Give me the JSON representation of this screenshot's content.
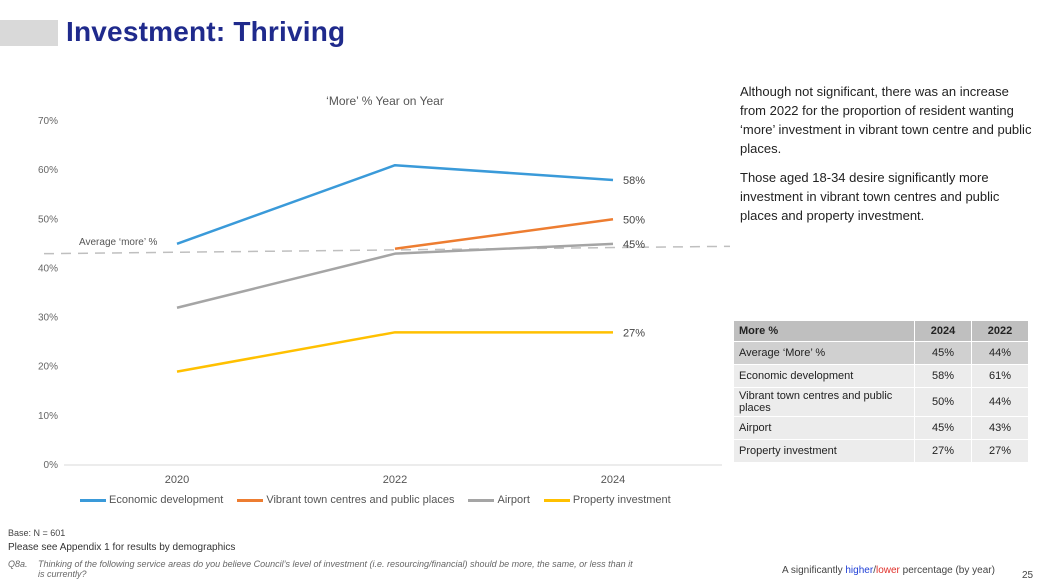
{
  "page": {
    "title": "Investment: Thriving",
    "page_number": "25"
  },
  "commentary": {
    "para1": "Although not significant, there was an increase from 2022 for the proportion of resident wanting ‘more’ investment in vibrant town centre and public places.",
    "para2": "Those aged 18-34 desire significantly more investment in vibrant town centres and public places and property investment."
  },
  "chart_data": {
    "type": "line",
    "title": "‘More’ % Year on Year",
    "categories": [
      "2020",
      "2022",
      "2024"
    ],
    "ylim": [
      0,
      70
    ],
    "y_ticks": [
      "0%",
      "10%",
      "20%",
      "30%",
      "40%",
      "50%",
      "60%",
      "70%"
    ],
    "y_tick_values": [
      0,
      10,
      20,
      30,
      40,
      50,
      60,
      70
    ],
    "series": [
      {
        "name": "Economic development",
        "color": "#3a9ad9",
        "values": [
          45,
          61,
          58
        ],
        "end_label": "58%"
      },
      {
        "name": "Vibrant town centres and public places",
        "color": "#ed7d31",
        "values": [
          null,
          44,
          50
        ],
        "end_label": "50%"
      },
      {
        "name": "Airport",
        "color": "#a5a5a5",
        "values": [
          32,
          43,
          45
        ],
        "end_label": "45%"
      },
      {
        "name": "Property investment",
        "color": "#ffc000",
        "values": [
          19,
          27,
          27
        ],
        "end_label": "27%"
      }
    ],
    "average_line": {
      "label": "Average ‘more’ %",
      "start": 43,
      "end": 44.5,
      "color": "#bfbfbf"
    },
    "legend_position": "bottom",
    "grid": false
  },
  "table": {
    "headers": [
      "More %",
      "2024",
      "2022"
    ],
    "rows": [
      {
        "label": "Average ‘More’ %",
        "v2024": "45%",
        "v2022": "44%"
      },
      {
        "label": "Economic development",
        "v2024": "58%",
        "v2022": "61%"
      },
      {
        "label": "Vibrant town centres and public places",
        "v2024": "50%",
        "v2022": "44%"
      },
      {
        "label": "Airport",
        "v2024": "45%",
        "v2022": "43%"
      },
      {
        "label": "Property investment",
        "v2024": "27%",
        "v2022": "27%"
      }
    ]
  },
  "footer": {
    "base": "Base: N = 601",
    "appendix": "Please see Appendix 1 for results by demographics",
    "question_number": "Q8a.",
    "question_text": "Thinking of the following service areas do you believe Council’s level of investment (i.e. resourcing/financial) should be more, the same, or less than it is currently?",
    "sig_prefix": "A significantly ",
    "sig_higher": "higher",
    "sig_slash": "/",
    "sig_lower": "lower",
    "sig_suffix": " percentage (by year)"
  }
}
